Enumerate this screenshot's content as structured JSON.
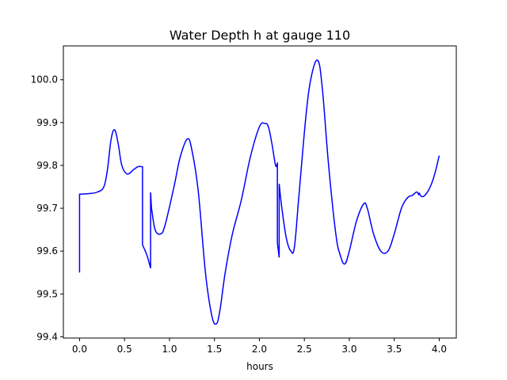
{
  "chart_data": {
    "type": "line",
    "title": "Water Depth h at gauge 110",
    "xlabel": "hours",
    "ylabel": "",
    "xlim": [
      -0.18,
      4.19
    ],
    "ylim": [
      99.397,
      100.079
    ],
    "grid": false,
    "legend": "none",
    "x_ticks": [
      0.0,
      0.5,
      1.0,
      1.5,
      2.0,
      2.5,
      3.0,
      3.5,
      4.0
    ],
    "x_tick_labels": [
      "0.0",
      "0.5",
      "1.0",
      "1.5",
      "2.0",
      "2.5",
      "3.0",
      "3.5",
      "4.0"
    ],
    "y_ticks": [
      99.4,
      99.5,
      99.6,
      99.7,
      99.8,
      99.9,
      100.0
    ],
    "y_tick_labels": [
      "99.4",
      "99.5",
      "99.6",
      "99.7",
      "99.8",
      "99.9",
      "100.0"
    ],
    "series": [
      {
        "color": "#0000ff",
        "x": [
          0.0,
          0.0,
          0.1,
          0.2,
          0.27,
          0.31,
          0.35,
          0.39,
          0.43,
          0.47,
          0.53,
          0.6,
          0.65,
          0.7,
          0.7,
          0.71,
          0.75,
          0.79,
          0.79,
          0.8,
          0.84,
          0.9,
          0.95,
          1.05,
          1.12,
          1.2,
          1.25,
          1.32,
          1.4,
          1.47,
          1.52,
          1.56,
          1.62,
          1.7,
          1.8,
          1.9,
          2.0,
          2.06,
          2.1,
          2.14,
          2.18,
          2.2,
          2.2,
          2.22,
          2.22,
          2.25,
          2.3,
          2.35,
          2.39,
          2.44,
          2.52,
          2.58,
          2.65,
          2.7,
          2.77,
          2.85,
          2.9,
          2.95,
          3.0,
          3.08,
          3.16,
          3.2,
          3.27,
          3.35,
          3.43,
          3.5,
          3.58,
          3.65,
          3.7,
          3.75,
          3.77,
          3.78,
          3.8,
          3.84,
          3.9,
          3.95,
          4.0
        ],
        "y": [
          99.55,
          99.733,
          99.734,
          99.738,
          99.75,
          99.79,
          99.86,
          99.883,
          99.85,
          99.8,
          99.78,
          99.79,
          99.797,
          99.797,
          99.615,
          99.61,
          99.59,
          99.56,
          99.737,
          99.7,
          99.65,
          99.64,
          99.66,
          99.75,
          99.82,
          99.862,
          99.835,
          99.74,
          99.55,
          99.45,
          99.43,
          99.46,
          99.55,
          99.64,
          99.72,
          99.82,
          99.89,
          99.898,
          99.89,
          99.85,
          99.8,
          99.805,
          99.62,
          99.585,
          99.757,
          99.7,
          99.63,
          99.6,
          99.61,
          99.73,
          99.92,
          100.01,
          100.045,
          99.98,
          99.8,
          99.64,
          99.59,
          99.57,
          99.6,
          99.67,
          99.71,
          99.7,
          99.64,
          99.6,
          99.6,
          99.64,
          99.7,
          99.725,
          99.73,
          99.738,
          99.732,
          99.735,
          99.728,
          99.73,
          99.75,
          99.78,
          99.823
        ]
      }
    ]
  }
}
